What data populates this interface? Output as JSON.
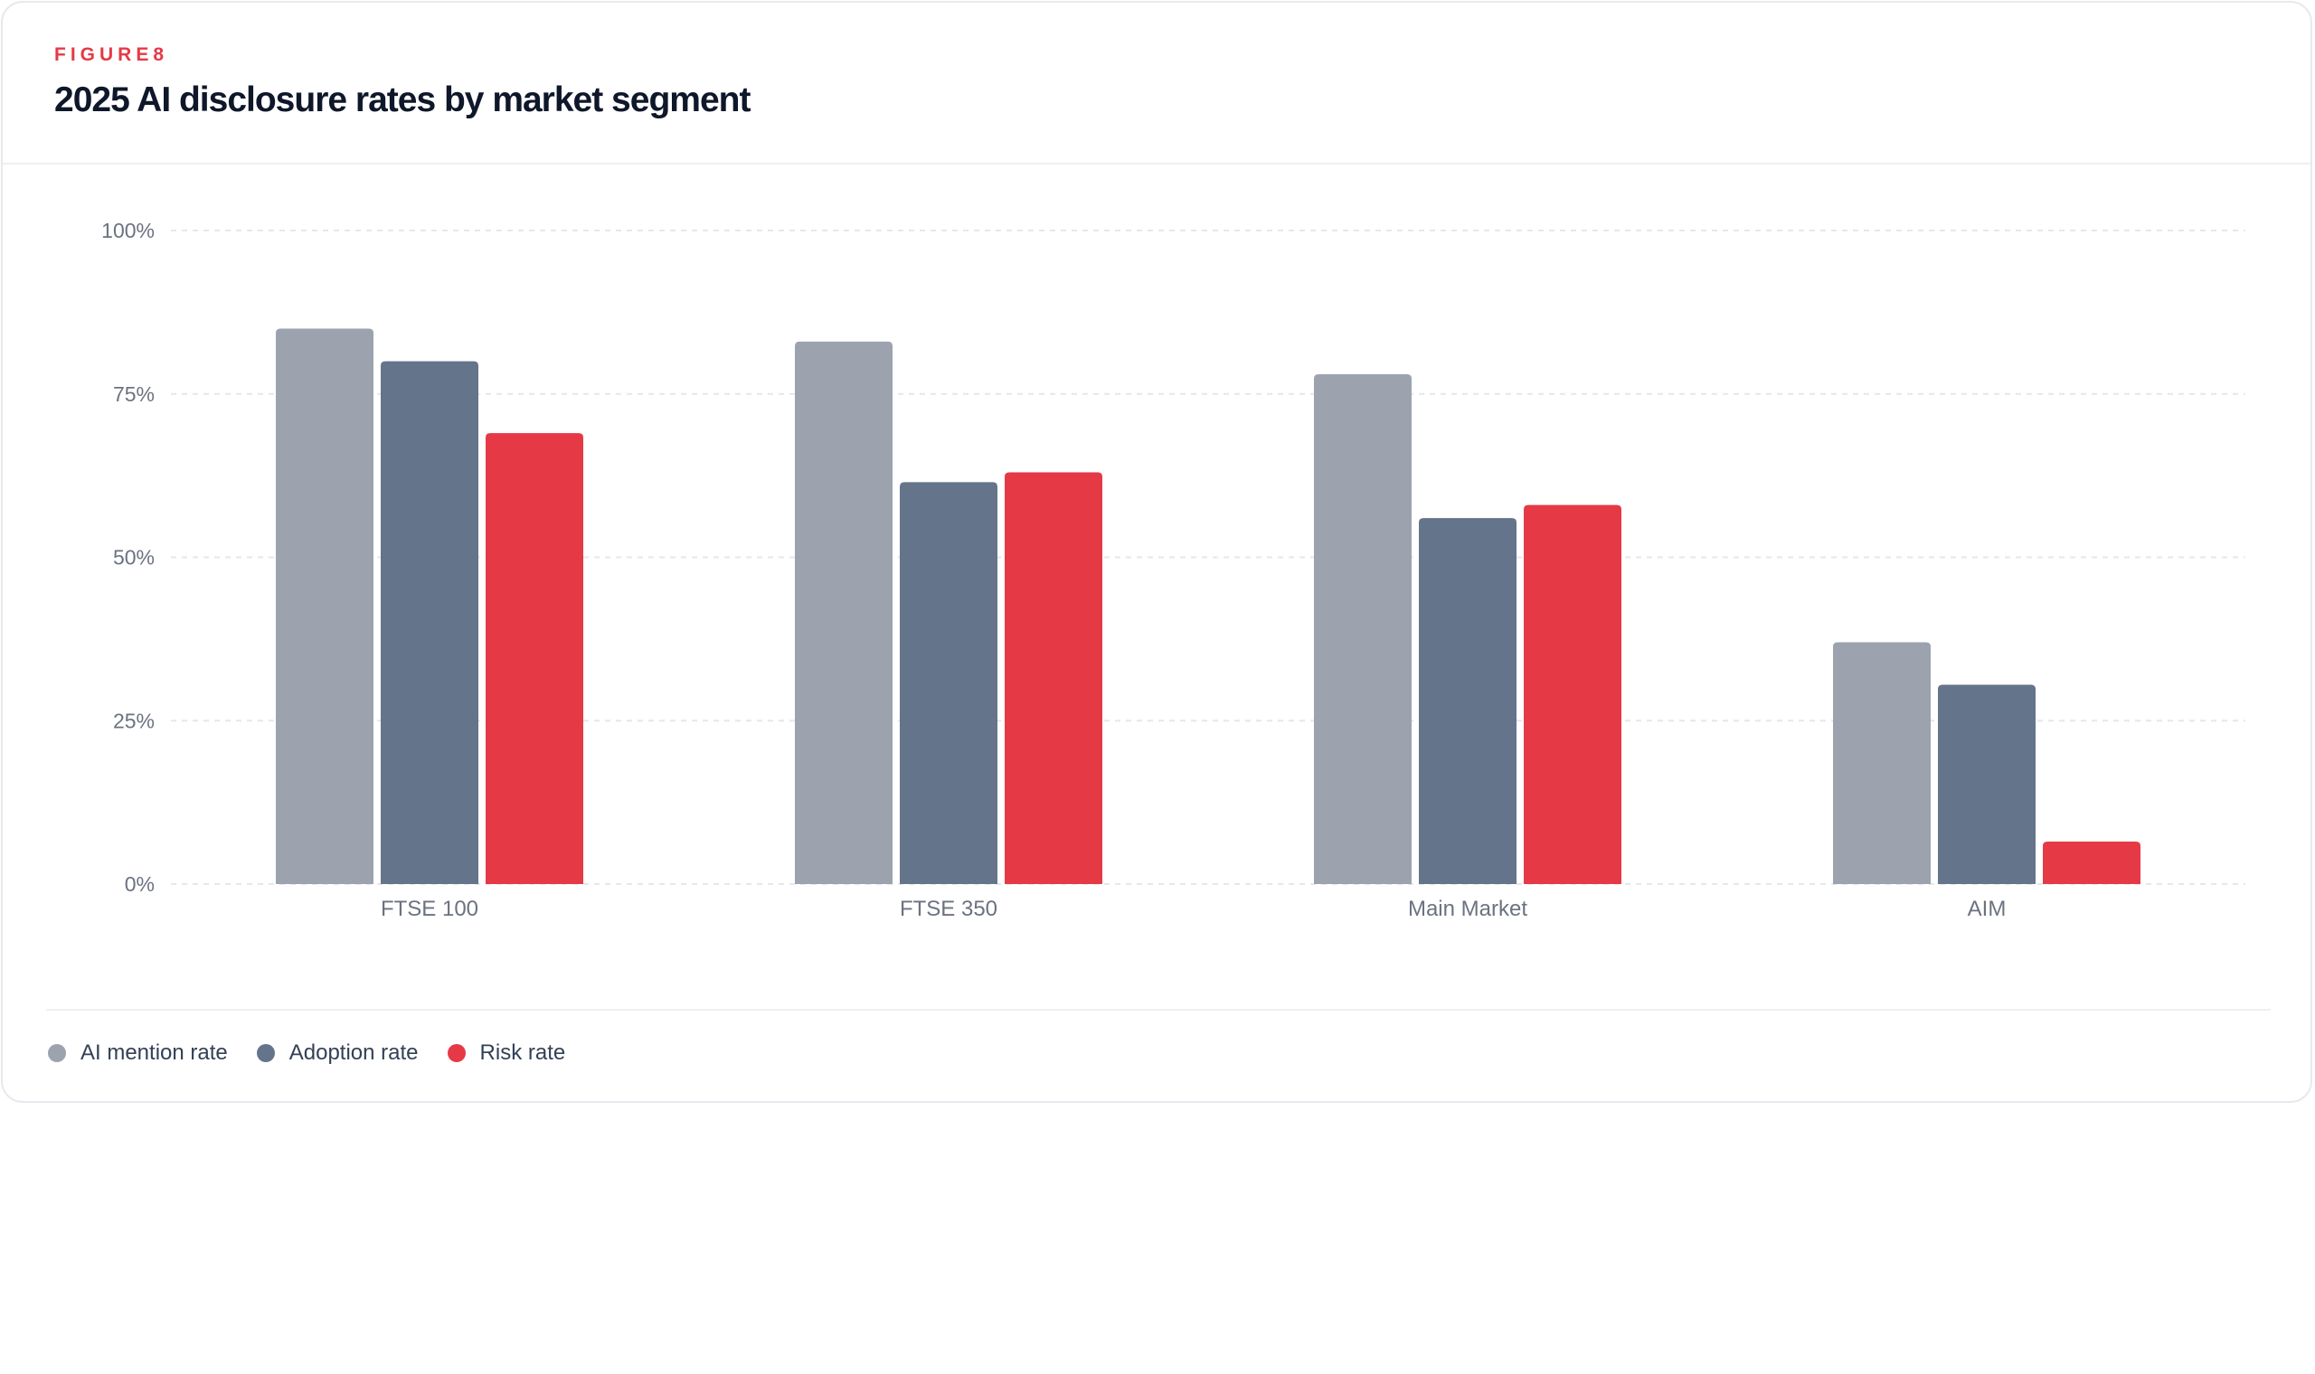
{
  "figure_label": "FIGURE8",
  "title": "2025 AI disclosure rates by market segment",
  "colors": {
    "accent": "#e63946",
    "ai_mention": "#9ca3af",
    "adoption": "#64748b",
    "risk": "#e63946",
    "grid": "#e5e7eb",
    "tick_text": "#6b7280"
  },
  "legend": {
    "items": [
      {
        "label": "AI mention rate",
        "color": "#9ca3af"
      },
      {
        "label": "Adoption rate",
        "color": "#64748b"
      },
      {
        "label": "Risk rate",
        "color": "#e63946"
      }
    ]
  },
  "chart_data": {
    "type": "bar",
    "title": "2025 AI disclosure rates by market segment",
    "xlabel": "",
    "ylabel": "",
    "categories": [
      "FTSE 100",
      "FTSE 350",
      "Main Market",
      "AIM"
    ],
    "series": [
      {
        "name": "AI mention rate",
        "color": "#9ca3af",
        "values": [
          85,
          83,
          78,
          37
        ]
      },
      {
        "name": "Adoption rate",
        "color": "#64748b",
        "values": [
          80,
          61.5,
          56,
          30.5
        ]
      },
      {
        "name": "Risk rate",
        "color": "#e63946",
        "values": [
          69,
          63,
          58,
          6.5
        ]
      }
    ],
    "ylim": [
      0,
      100
    ],
    "yticks": [
      0,
      25,
      50,
      75,
      100
    ],
    "ytick_labels": [
      "0%",
      "25%",
      "50%",
      "75%",
      "100%"
    ],
    "grid": true,
    "legend_position": "bottom-left"
  }
}
